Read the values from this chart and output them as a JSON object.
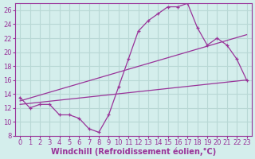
{
  "xlabel": "Windchill (Refroidissement éolien,°C)",
  "bg_color": "#d4eeec",
  "grid_color": "#b8d8d5",
  "line_color": "#993399",
  "xlim": [
    -0.5,
    23.5
  ],
  "ylim": [
    8,
    27
  ],
  "xticks": [
    0,
    1,
    2,
    3,
    4,
    5,
    6,
    7,
    8,
    9,
    10,
    11,
    12,
    13,
    14,
    15,
    16,
    17,
    18,
    19,
    20,
    21,
    22,
    23
  ],
  "yticks": [
    8,
    10,
    12,
    14,
    16,
    18,
    20,
    22,
    24,
    26
  ],
  "zigzag_x": [
    0,
    1,
    2,
    3,
    4,
    5,
    6,
    7,
    8,
    9,
    10,
    11,
    12,
    13,
    14,
    15,
    16,
    17,
    18,
    19,
    20,
    21,
    22,
    23
  ],
  "zigzag_y": [
    13.5,
    12,
    12.5,
    12.5,
    11,
    11,
    10.5,
    9,
    8.5,
    11,
    15,
    19,
    23,
    24.5,
    25.5,
    26.5,
    26.5,
    27,
    23.5,
    21,
    22,
    21,
    19,
    16
  ],
  "line2_x": [
    0,
    23
  ],
  "line2_y": [
    12.5,
    16.0
  ],
  "line3_x": [
    0,
    23
  ],
  "line3_y": [
    13.0,
    22.5
  ],
  "tick_fontsize": 6,
  "label_fontsize": 7
}
